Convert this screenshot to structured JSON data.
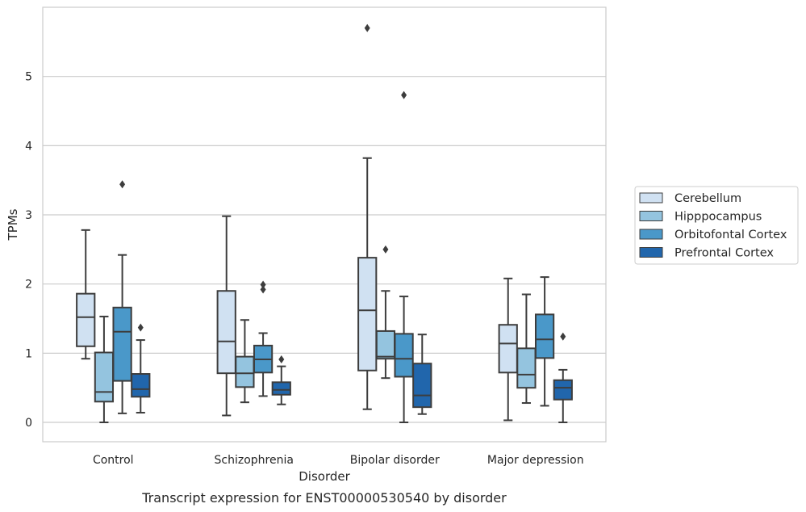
{
  "chart_data": {
    "type": "box",
    "xlabel": "Disorder",
    "ylabel": "TPMs",
    "caption": "Transcript expression for ENST00000530540 by disorder",
    "ylim": [
      -0.28,
      6.0
    ],
    "yticks": [
      0,
      1,
      2,
      3,
      4,
      5
    ],
    "grid": "horizontal",
    "legend_position": "right",
    "categories": [
      "Control",
      "Schizophrenia",
      "Bipolar disorder",
      "Major depression"
    ],
    "series": [
      {
        "name": "Cerebellum",
        "color": "#d0e1f2",
        "boxes": [
          {
            "whisker_low": 0.92,
            "q1": 1.1,
            "median": 1.52,
            "q3": 1.86,
            "whisker_high": 2.78,
            "outliers": []
          },
          {
            "whisker_low": 0.1,
            "q1": 0.71,
            "median": 1.17,
            "q3": 1.9,
            "whisker_high": 2.98,
            "outliers": []
          },
          {
            "whisker_low": 0.19,
            "q1": 0.75,
            "median": 1.62,
            "q3": 2.38,
            "whisker_high": 3.82,
            "outliers": [
              5.7
            ]
          },
          {
            "whisker_low": 0.03,
            "q1": 0.72,
            "median": 1.14,
            "q3": 1.41,
            "whisker_high": 2.08,
            "outliers": []
          }
        ]
      },
      {
        "name": "Hipppocampus",
        "color": "#94c4df",
        "boxes": [
          {
            "whisker_low": 0.0,
            "q1": 0.3,
            "median": 0.44,
            "q3": 1.01,
            "whisker_high": 1.53,
            "outliers": []
          },
          {
            "whisker_low": 0.29,
            "q1": 0.51,
            "median": 0.71,
            "q3": 0.95,
            "whisker_high": 1.48,
            "outliers": []
          },
          {
            "whisker_low": 0.64,
            "q1": 0.92,
            "median": 0.95,
            "q3": 1.32,
            "whisker_high": 1.9,
            "outliers": [
              2.5
            ]
          },
          {
            "whisker_low": 0.28,
            "q1": 0.5,
            "median": 0.69,
            "q3": 1.07,
            "whisker_high": 1.85,
            "outliers": []
          }
        ]
      },
      {
        "name": "Orbitofontal Cortex",
        "color": "#4a98c9",
        "boxes": [
          {
            "whisker_low": 0.13,
            "q1": 0.6,
            "median": 1.31,
            "q3": 1.66,
            "whisker_high": 2.42,
            "outliers": [
              3.44
            ]
          },
          {
            "whisker_low": 0.38,
            "q1": 0.72,
            "median": 0.91,
            "q3": 1.11,
            "whisker_high": 1.29,
            "outliers": [
              1.92,
              1.99
            ]
          },
          {
            "whisker_low": 0.0,
            "q1": 0.66,
            "median": 0.92,
            "q3": 1.28,
            "whisker_high": 1.82,
            "outliers": [
              4.73
            ]
          },
          {
            "whisker_low": 0.24,
            "q1": 0.93,
            "median": 1.2,
            "q3": 1.56,
            "whisker_high": 2.1,
            "outliers": []
          }
        ]
      },
      {
        "name": "Prefrontal Cortex",
        "color": "#2166ac",
        "boxes": [
          {
            "whisker_low": 0.14,
            "q1": 0.37,
            "median": 0.48,
            "q3": 0.7,
            "whisker_high": 1.19,
            "outliers": [
              1.37
            ]
          },
          {
            "whisker_low": 0.26,
            "q1": 0.4,
            "median": 0.47,
            "q3": 0.58,
            "whisker_high": 0.81,
            "outliers": [
              0.91
            ]
          },
          {
            "whisker_low": 0.12,
            "q1": 0.22,
            "median": 0.39,
            "q3": 0.85,
            "whisker_high": 1.27,
            "outliers": []
          },
          {
            "whisker_low": 0.0,
            "q1": 0.33,
            "median": 0.5,
            "q3": 0.61,
            "whisker_high": 0.76,
            "outliers": [
              1.24
            ]
          }
        ]
      }
    ]
  }
}
